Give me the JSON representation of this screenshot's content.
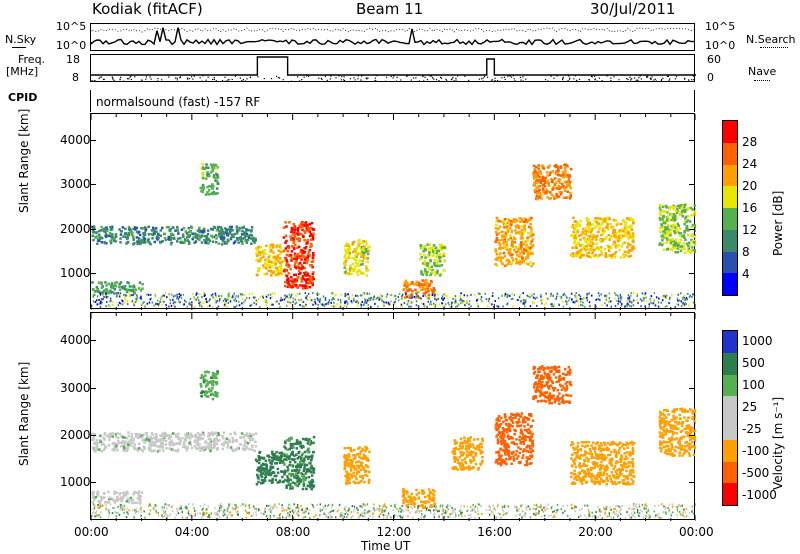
{
  "header": {
    "station": "Kodiak (fitACF)",
    "beam": "Beam 11",
    "date": "30/Jul/2011"
  },
  "noise_panel": {
    "left_label": "N.Sky",
    "right_label": "N.Search",
    "left_ticks": [
      "10^5",
      "10^0"
    ],
    "right_ticks": [
      "10^5",
      "10^0"
    ]
  },
  "freq_panel": {
    "left_label_1": "Freq.",
    "left_label_2": "[MHz]",
    "right_label": "Nave",
    "left_ticks": [
      "18",
      "8"
    ],
    "right_ticks": [
      "60",
      "0"
    ]
  },
  "cpid": {
    "label": "CPID",
    "text": "normalsound (fast) -157 RF"
  },
  "colors": {
    "power": [
      "#0000ff",
      "#2a4fb0",
      "#3a8a6a",
      "#55b050",
      "#e6e600",
      "#ffa000",
      "#ff6000",
      "#ff0000"
    ],
    "velocity": [
      "#ff0000",
      "#ff6000",
      "#ffa000",
      "#c8c8c8",
      "#c8c8c8",
      "#55b050",
      "#2e7d4f",
      "#2233cc"
    ]
  },
  "chart_data": [
    {
      "type": "heatmap",
      "ylabel": "Slant Range [km]",
      "yticks": [
        "1000",
        "2000",
        "3000",
        "4000"
      ],
      "ylim": [
        200,
        4600
      ],
      "xlim": [
        0,
        24
      ],
      "colorbar": {
        "label": "Power [dB]",
        "ticks": [
          "4",
          "8",
          "12",
          "16",
          "20",
          "24",
          "28"
        ],
        "range": [
          0,
          32
        ]
      },
      "features": [
        {
          "t0": 0.0,
          "t1": 6.5,
          "r0": 1700,
          "r1": 2100,
          "value": 10
        },
        {
          "t0": 0.0,
          "t1": 2.0,
          "r0": 600,
          "r1": 850,
          "value": 12
        },
        {
          "t0": 4.3,
          "t1": 5.0,
          "r0": 2800,
          "r1": 3500,
          "value": 14
        },
        {
          "t0": 6.5,
          "t1": 7.6,
          "r0": 1000,
          "r1": 1700,
          "value": 20
        },
        {
          "t0": 7.6,
          "t1": 8.8,
          "r0": 700,
          "r1": 2200,
          "value": 28
        },
        {
          "t0": 10.0,
          "t1": 11.0,
          "r0": 1000,
          "r1": 1800,
          "value": 18
        },
        {
          "t0": 12.3,
          "t1": 13.6,
          "r0": 500,
          "r1": 900,
          "value": 24
        },
        {
          "t0": 13.0,
          "t1": 14.0,
          "r0": 1000,
          "r1": 1700,
          "value": 16
        },
        {
          "t0": 16.0,
          "t1": 17.5,
          "r0": 1200,
          "r1": 2300,
          "value": 22
        },
        {
          "t0": 17.5,
          "t1": 19.0,
          "r0": 2700,
          "r1": 3500,
          "value": 24
        },
        {
          "t0": 19.0,
          "t1": 21.5,
          "r0": 1400,
          "r1": 2300,
          "value": 20
        },
        {
          "t0": 22.5,
          "t1": 24.0,
          "r0": 1500,
          "r1": 2600,
          "value": 16
        }
      ]
    },
    {
      "type": "heatmap",
      "ylabel": "Slant Range [km]",
      "xlabel": "Time UT",
      "xticks": [
        "00:00",
        "04:00",
        "08:00",
        "12:00",
        "16:00",
        "20:00",
        "00:00"
      ],
      "yticks": [
        "1000",
        "2000",
        "3000",
        "4000"
      ],
      "ylim": [
        200,
        4600
      ],
      "xlim": [
        0,
        24
      ],
      "colorbar": {
        "label": "Velocity [m s⁻¹]",
        "ticks": [
          "1000",
          "500",
          "100",
          "25",
          "-25",
          "-100",
          "-500",
          "-1000"
        ]
      },
      "features": [
        {
          "t0": 0.0,
          "t1": 6.5,
          "r0": 1700,
          "r1": 2100,
          "value": 0
        },
        {
          "t0": 0.0,
          "t1": 2.0,
          "r0": 600,
          "r1": 850,
          "value": 0
        },
        {
          "t0": 4.3,
          "t1": 5.0,
          "r0": 2800,
          "r1": 3400,
          "value": 80
        },
        {
          "t0": 6.5,
          "t1": 7.6,
          "r0": 1000,
          "r1": 1700,
          "value": 150
        },
        {
          "t0": 7.6,
          "t1": 8.8,
          "r0": 900,
          "r1": 2000,
          "value": 120
        },
        {
          "t0": 10.0,
          "t1": 11.0,
          "r0": 1000,
          "r1": 1800,
          "value": -300
        },
        {
          "t0": 12.3,
          "t1": 13.6,
          "r0": 500,
          "r1": 900,
          "value": -200
        },
        {
          "t0": 14.3,
          "t1": 15.5,
          "r0": 1300,
          "r1": 2000,
          "value": -400
        },
        {
          "t0": 16.0,
          "t1": 17.5,
          "r0": 1400,
          "r1": 2500,
          "value": -700
        },
        {
          "t0": 17.5,
          "t1": 19.0,
          "r0": 2700,
          "r1": 3500,
          "value": -800
        },
        {
          "t0": 19.0,
          "t1": 21.5,
          "r0": 1000,
          "r1": 1900,
          "value": -300
        },
        {
          "t0": 22.5,
          "t1": 24.0,
          "r0": 1600,
          "r1": 2600,
          "value": -400
        }
      ]
    }
  ]
}
